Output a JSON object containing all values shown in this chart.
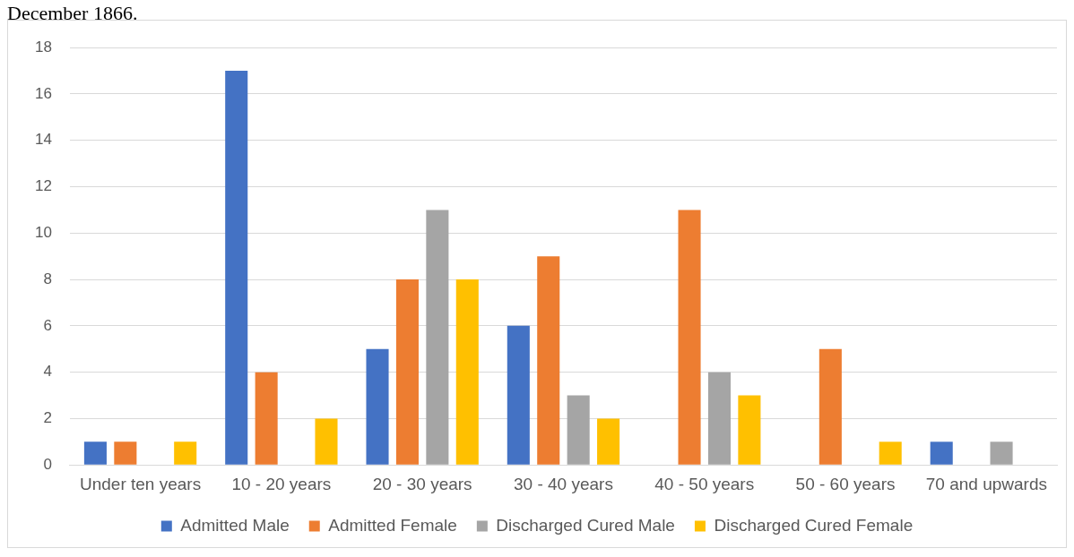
{
  "chart_data": {
    "type": "bar",
    "title": "December 1866.",
    "categories": [
      "Under ten years",
      "10 - 20 years",
      "20 - 30 years",
      "30 - 40 years",
      "40 - 50 years",
      "50 - 60 years",
      "70 and upwards"
    ],
    "series": [
      {
        "name": "Admitted Male",
        "color": "#4472c4",
        "values": [
          1,
          17,
          5,
          6,
          0,
          0,
          1
        ]
      },
      {
        "name": "Admitted Female",
        "color": "#ed7d31",
        "values": [
          1,
          4,
          8,
          9,
          11,
          5,
          0
        ]
      },
      {
        "name": "Discharged Cured Male",
        "color": "#a5a5a5",
        "values": [
          0,
          0,
          11,
          3,
          4,
          0,
          1
        ]
      },
      {
        "name": "Discharged Cured Female",
        "color": "#ffc000",
        "values": [
          1,
          2,
          8,
          2,
          3,
          1,
          0
        ]
      }
    ],
    "ylim": [
      0,
      18
    ],
    "yticks": [
      0,
      2,
      4,
      6,
      8,
      10,
      12,
      14,
      16,
      18
    ],
    "grid": "y",
    "legend": "bottom"
  }
}
